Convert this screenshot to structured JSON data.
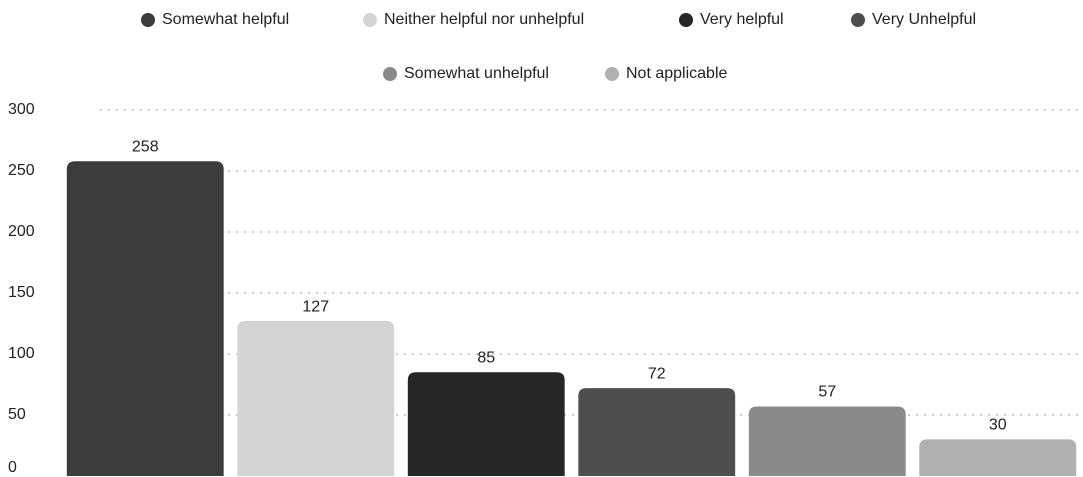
{
  "chart_data": {
    "type": "bar",
    "categories": [
      "Somewhat helpful",
      "Neither helpful nor unhelpful",
      "Very helpful",
      "Very Unhelpful",
      "Somewhat unhelpful",
      "Not applicable"
    ],
    "values": [
      258,
      127,
      85,
      72,
      57,
      30
    ],
    "colors": [
      "#3c3c3c",
      "#d4d4d4",
      "#262626",
      "#4e4e4e",
      "#8a8a8a",
      "#b0b0b0"
    ],
    "ylim": [
      0,
      300
    ],
    "yticks": [
      0,
      50,
      100,
      150,
      200,
      250,
      300
    ],
    "grid": true
  }
}
